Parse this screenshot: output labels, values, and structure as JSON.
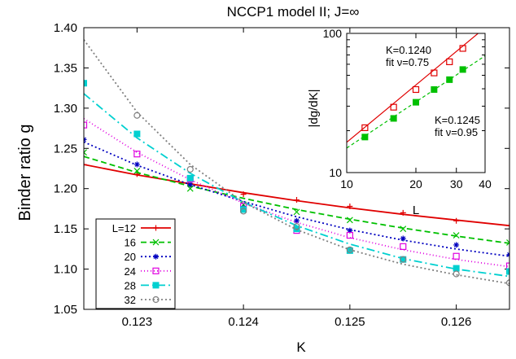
{
  "chart_data": [
    {
      "type": "line",
      "title": "NCCP1 model II; J=∞",
      "xlabel": "K",
      "ylabel": "Binder ratio g",
      "xlim": [
        0.1225,
        0.1265
      ],
      "ylim": [
        1.05,
        1.4
      ],
      "xticks": [
        0.123,
        0.124,
        0.125,
        0.126
      ],
      "xtick_labels": [
        "0.123",
        "0.124",
        "0.125",
        "0.126"
      ],
      "yticks": [
        1.05,
        1.1,
        1.15,
        1.2,
        1.25,
        1.3,
        1.35,
        1.4
      ],
      "ytick_labels": [
        "1.05",
        "1.10",
        "1.15",
        "1.20",
        "1.25",
        "1.30",
        "1.35",
        "1.40"
      ],
      "grid": false,
      "legend_position": "bottom-left",
      "series": [
        {
          "name": "L=12",
          "color": "#e00000",
          "marker": "plus",
          "dash": "",
          "points": [
            [
              0.1225,
              1.23
            ],
            [
              0.123,
              1.218
            ],
            [
              0.1235,
              1.206
            ],
            [
              0.124,
              1.193
            ],
            [
              0.1245,
              1.186
            ],
            [
              0.125,
              1.178
            ],
            [
              0.1255,
              1.17
            ],
            [
              0.126,
              1.16
            ],
            [
              0.1265,
              1.154
            ]
          ],
          "curve": [
            [
              0.1225,
              1.23
            ],
            [
              0.123,
              1.217
            ],
            [
              0.1235,
              1.206
            ],
            [
              0.124,
              1.195
            ],
            [
              0.1245,
              1.185
            ],
            [
              0.125,
              1.176
            ],
            [
              0.1255,
              1.168
            ],
            [
              0.126,
              1.161
            ],
            [
              0.1265,
              1.154
            ]
          ]
        },
        {
          "name": "16",
          "color": "#00c000",
          "marker": "x",
          "dash": "7,4",
          "points": [
            [
              0.1225,
              1.245
            ],
            [
              0.123,
              1.222
            ],
            [
              0.1235,
              1.2
            ],
            [
              0.124,
              1.18
            ],
            [
              0.1245,
              1.171
            ],
            [
              0.125,
              1.161
            ],
            [
              0.1255,
              1.15
            ],
            [
              0.126,
              1.142
            ],
            [
              0.1265,
              1.133
            ]
          ],
          "curve": [
            [
              0.1225,
              1.24
            ],
            [
              0.123,
              1.22
            ],
            [
              0.1235,
              1.203
            ],
            [
              0.124,
              1.188
            ],
            [
              0.1245,
              1.174
            ],
            [
              0.125,
              1.162
            ],
            [
              0.1255,
              1.151
            ],
            [
              0.126,
              1.141
            ],
            [
              0.1265,
              1.132
            ]
          ]
        },
        {
          "name": "20",
          "color": "#0000c0",
          "marker": "star",
          "dash": "2,3",
          "points": [
            [
              0.1225,
              1.261
            ],
            [
              0.123,
              1.23
            ],
            [
              0.1235,
              1.205
            ],
            [
              0.124,
              1.176
            ],
            [
              0.1245,
              1.16
            ],
            [
              0.125,
              1.148
            ],
            [
              0.1255,
              1.138
            ],
            [
              0.126,
              1.13
            ],
            [
              0.1265,
              1.118
            ]
          ],
          "curve": [
            [
              0.1225,
              1.258
            ],
            [
              0.123,
              1.229
            ],
            [
              0.1235,
              1.205
            ],
            [
              0.124,
              1.184
            ],
            [
              0.1245,
              1.165
            ],
            [
              0.125,
              1.149
            ],
            [
              0.1255,
              1.136
            ],
            [
              0.126,
              1.125
            ],
            [
              0.1265,
              1.116
            ]
          ]
        },
        {
          "name": "24",
          "color": "#e000e0",
          "marker": "square",
          "dash": "1,3",
          "points": [
            [
              0.1225,
              1.279
            ],
            [
              0.123,
              1.243
            ],
            [
              0.1235,
              1.212
            ],
            [
              0.124,
              1.178
            ],
            [
              0.1245,
              1.148
            ],
            [
              0.125,
              1.142
            ],
            [
              0.1255,
              1.128
            ],
            [
              0.126,
              1.116
            ],
            [
              0.1265,
              1.104
            ]
          ],
          "curve": [
            [
              0.1225,
              1.287
            ],
            [
              0.123,
              1.245
            ],
            [
              0.1235,
              1.211
            ],
            [
              0.124,
              1.182
            ],
            [
              0.1245,
              1.158
            ],
            [
              0.125,
              1.139
            ],
            [
              0.1255,
              1.124
            ],
            [
              0.126,
              1.112
            ],
            [
              0.1265,
              1.103
            ]
          ]
        },
        {
          "name": "28",
          "color": "#00d0d0",
          "marker": "filled-square",
          "dash": "10,4,2,4",
          "points": [
            [
              0.1225,
              1.331
            ],
            [
              0.123,
              1.268
            ],
            [
              0.1235,
              1.213
            ],
            [
              0.124,
              1.174
            ],
            [
              0.1245,
              1.15
            ],
            [
              0.125,
              1.123
            ],
            [
              0.1255,
              1.112
            ],
            [
              0.126,
              1.101
            ],
            [
              0.1265,
              1.097
            ]
          ],
          "curve": [
            [
              0.1225,
              1.318
            ],
            [
              0.123,
              1.263
            ],
            [
              0.1235,
              1.219
            ],
            [
              0.124,
              1.183
            ],
            [
              0.1245,
              1.154
            ],
            [
              0.125,
              1.131
            ],
            [
              0.1255,
              1.113
            ],
            [
              0.126,
              1.1
            ],
            [
              0.1265,
              1.091
            ]
          ]
        },
        {
          "name": "32",
          "color": "#808080",
          "marker": "circle",
          "dash": "2,3",
          "points": [
            [
              0.123,
              1.291
            ],
            [
              0.1235,
              1.224
            ],
            [
              0.124,
              1.172
            ],
            [
              0.1245,
              1.153
            ],
            [
              0.125,
              1.124
            ],
            [
              0.1255,
              1.112
            ],
            [
              0.126,
              1.094
            ],
            [
              0.1265,
              1.083
            ]
          ],
          "curve": [
            [
              0.1225,
              1.385
            ],
            [
              0.123,
              1.295
            ],
            [
              0.1235,
              1.23
            ],
            [
              0.124,
              1.183
            ],
            [
              0.1245,
              1.149
            ],
            [
              0.125,
              1.124
            ],
            [
              0.1255,
              1.106
            ],
            [
              0.126,
              1.093
            ],
            [
              0.1265,
              1.082
            ]
          ]
        }
      ]
    },
    {
      "type": "line",
      "title": "",
      "xlabel": "L",
      "ylabel": "|dg/dK|",
      "xscale": "log",
      "yscale": "log",
      "xlim": [
        10,
        40
      ],
      "ylim": [
        10,
        100
      ],
      "xticks": [
        10,
        20,
        30,
        40
      ],
      "xtick_labels": [
        "10",
        "20",
        "30",
        "40"
      ],
      "yticks": [
        10,
        100
      ],
      "ytick_labels": [
        "10",
        "100"
      ],
      "annotations": [
        {
          "text": "K=0.1240",
          "color": "#000000"
        },
        {
          "text": "fit ν=0.75",
          "color": "#000000"
        },
        {
          "text": "K=0.1245",
          "color": "#000000"
        },
        {
          "text": "fit ν=0.95",
          "color": "#000000"
        }
      ],
      "series": [
        {
          "name": "K=0.1240",
          "color": "#e00000",
          "marker": "square",
          "dash": "",
          "points": [
            [
              12,
              21.0
            ],
            [
              16,
              29.5
            ],
            [
              20,
              39.5
            ],
            [
              24,
              52.0
            ],
            [
              28,
              62.5
            ],
            [
              32,
              78.0
            ]
          ],
          "fit": [
            [
              10,
              16.5
            ],
            [
              40,
              110
            ]
          ]
        },
        {
          "name": "K=0.1245",
          "color": "#00c000",
          "marker": "filled-square",
          "dash": "4,3",
          "points": [
            [
              12,
              18.0
            ],
            [
              16,
              24.5
            ],
            [
              20,
              32.0
            ],
            [
              24,
              39.5
            ],
            [
              28,
              46.5
            ],
            [
              32,
              55.0
            ]
          ],
          "fit": [
            [
              10,
              15.0
            ],
            [
              40,
              69.0
            ]
          ]
        }
      ]
    }
  ]
}
